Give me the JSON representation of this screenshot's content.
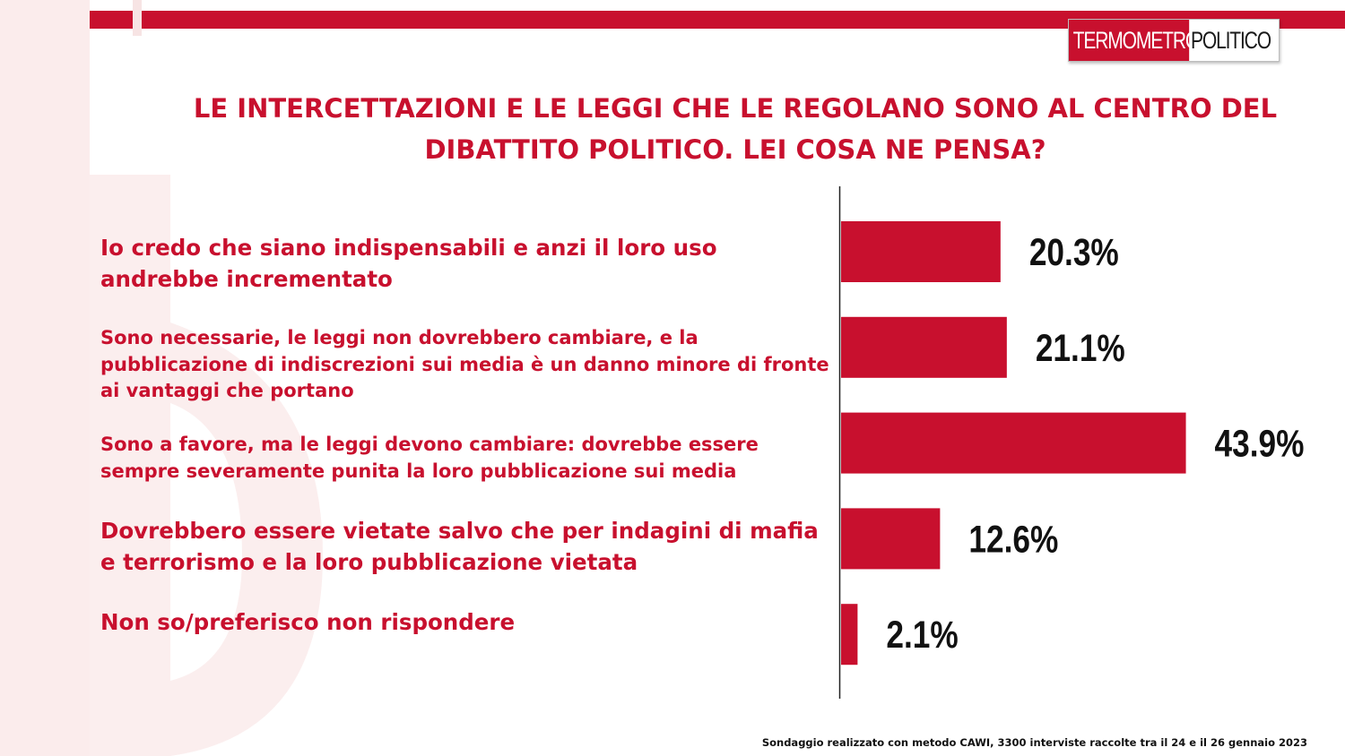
{
  "brand": {
    "logo_part1": "TERMOMETRO",
    "logo_part2": "POLITICO",
    "accent": "#c8102e"
  },
  "chart_data": {
    "type": "bar",
    "orientation": "horizontal",
    "title": "LE INTERCETTAZIONI E LE LEGGI CHE LE REGOLANO SONO AL CENTRO DEL DIBATTITO POLITICO. LEI COSA NE PENSA?",
    "categories": [
      "Io credo che siano indispensabili e anzi il loro uso andrebbe incrementato",
      "Sono necessarie, le leggi non dovrebbero cambiare, e la pubblicazione di indiscrezioni sui media è un danno minore di fronte ai vantaggi che portano",
      "Sono a favore, ma le leggi devono cambiare: dovrebbe essere sempre severamente punita la loro pubblicazione sui media",
      "Dovrebbero essere vietate salvo che per indagini di mafia e terrorismo e la loro pubblicazione vietata",
      "Non so/preferisco non rispondere"
    ],
    "values": [
      20.3,
      21.1,
      43.9,
      12.6,
      2.1
    ],
    "value_labels": [
      "20.3%",
      "21.1%",
      "43.9%",
      "12.6%",
      "2.1%"
    ],
    "unit": "%",
    "xlim": [
      0,
      50
    ],
    "bar_color": "#c8102e",
    "grid": false,
    "legend": "none"
  },
  "footnote": "Sondaggio realizzato con metodo CAWI, 3300 interviste raccolte tra il 24 e il 26 gennaio 2023"
}
